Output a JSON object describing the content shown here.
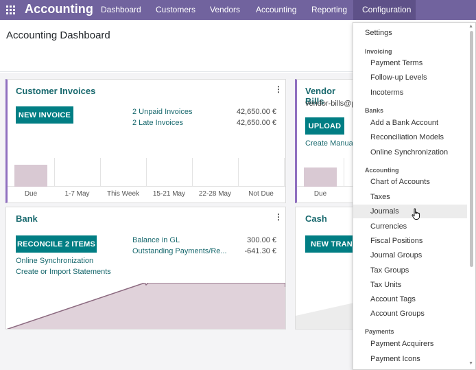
{
  "colors": {
    "navbar": "#71639e",
    "navbar_active": "#5e5188",
    "primary_button": "#017e84",
    "link": "#17686d",
    "card_accent": "#8f6fbf",
    "graph_fill": "#d9c9d3"
  },
  "navbar": {
    "apps_icon": "grid-icon",
    "brand": "Accounting",
    "menu": [
      "Dashboard",
      "Customers",
      "Vendors",
      "Accounting",
      "Reporting",
      "Configuration"
    ],
    "active_menu": "Configuration"
  },
  "page": {
    "title": "Accounting Dashboard"
  },
  "cards": {
    "customer_invoices": {
      "title": "Customer Invoices",
      "button": "NEW INVOICE",
      "links": [
        "2 Unpaid Invoices",
        "2 Late Invoices"
      ],
      "amounts": [
        "42,650.00 €",
        "42,650.00 €"
      ],
      "graph_labels": [
        "Due",
        "1-7 May",
        "This Week",
        "15-21 May",
        "22-28 May",
        "Not Due"
      ],
      "graph_values": [
        1,
        0,
        0,
        0,
        0,
        0
      ]
    },
    "vendor_bills": {
      "title": "Vendor Bills",
      "email": "vendor-bills@p",
      "button": "UPLOAD",
      "link": "Create Manual",
      "graph_labels": [
        "Due"
      ],
      "graph_values": [
        1
      ]
    },
    "bank": {
      "title": "Bank",
      "button": "RECONCILE 2 ITEMS",
      "links": [
        "Online Synchronization",
        "Create or Import Statements"
      ],
      "balance_labels": [
        "Balance in GL",
        "Outstanding Payments/Re..."
      ],
      "balance_amounts": [
        "300.00 €",
        "-641.30 €"
      ]
    },
    "cash": {
      "title": "Cash",
      "button": "NEW TRANS"
    }
  },
  "dropdown": {
    "settings": "Settings",
    "sections": [
      {
        "header": "Invoicing",
        "items": [
          "Payment Terms",
          "Follow-up Levels",
          "Incoterms"
        ]
      },
      {
        "header": "Banks",
        "items": [
          "Add a Bank Account",
          "Reconciliation Models",
          "Online Synchronization"
        ]
      },
      {
        "header": "Accounting",
        "items": [
          "Chart of Accounts",
          "Taxes",
          "Journals",
          "Currencies",
          "Fiscal Positions",
          "Journal Groups",
          "Tax Groups",
          "Tax Units",
          "Account Tags",
          "Account Groups"
        ]
      },
      {
        "header": "Payments",
        "items": [
          "Payment Acquirers",
          "Payment Icons"
        ]
      }
    ],
    "hovered_item": "Journals"
  }
}
